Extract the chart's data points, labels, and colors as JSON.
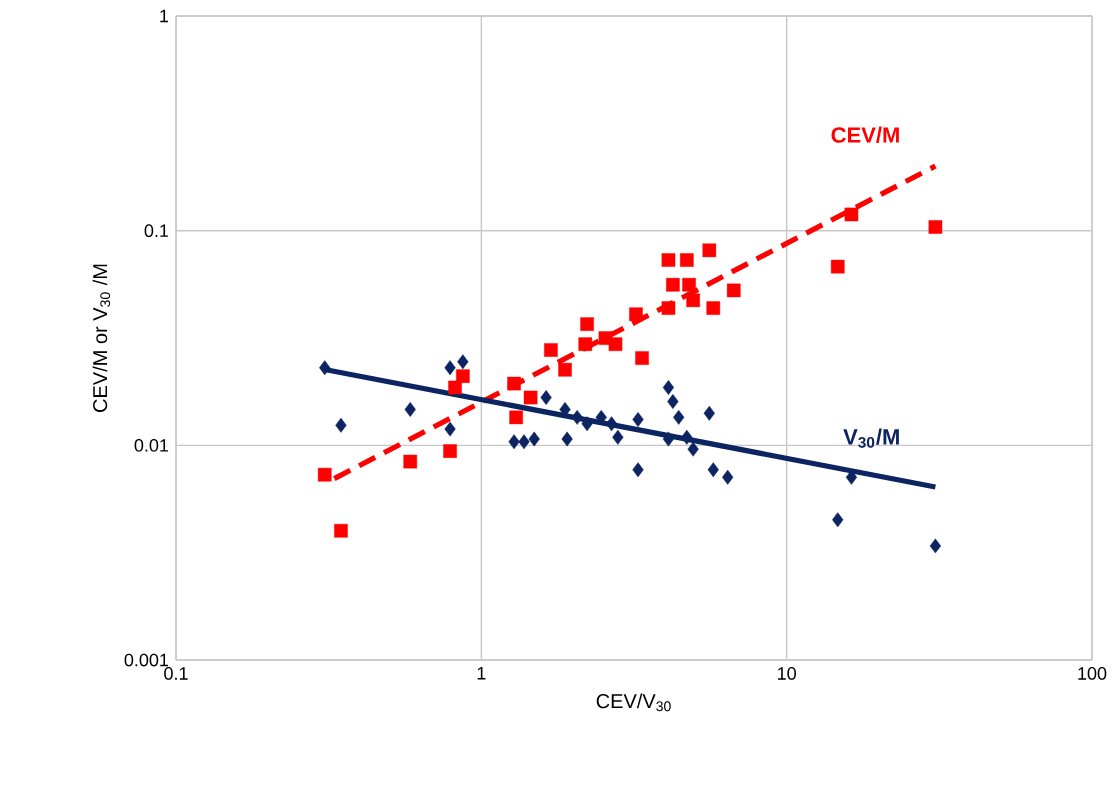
{
  "chart_data": {
    "type": "scatter",
    "xlabel": "CEV/V$_{30}$",
    "ylabel": "CEV/M  or V$_{30}$ /M",
    "log": "xy",
    "grid": true,
    "xlim": [
      0.1,
      100
    ],
    "ylim": [
      0.001,
      1
    ],
    "xticks": [
      0.1,
      1,
      10,
      100
    ],
    "yticks": [
      0.001,
      0.01,
      0.1,
      1
    ],
    "series": [
      {
        "name": "CEV/M",
        "type": "scatter",
        "marker": "square",
        "color": "#ff0000",
        "x": [
          0.307,
          0.347,
          0.585,
          0.79,
          0.87,
          0.82,
          1.28,
          1.45,
          1.3,
          1.69,
          1.88,
          2.22,
          2.19,
          2.55,
          2.75,
          3.21,
          3.36,
          4.1,
          4.71,
          5.58,
          4.24,
          4.79,
          4.1,
          4.94,
          5.75,
          6.71,
          14.7,
          16.3,
          30.7
        ],
        "values": [
          0.0073,
          0.004,
          0.0084,
          0.0094,
          0.021,
          0.0186,
          0.0194,
          0.0167,
          0.0135,
          0.0278,
          0.0225,
          0.0367,
          0.0296,
          0.0316,
          0.0296,
          0.0408,
          0.0255,
          0.073,
          0.073,
          0.081,
          0.056,
          0.056,
          0.0436,
          0.0474,
          0.0436,
          0.0527,
          0.068,
          0.119,
          0.104
        ]
      },
      {
        "type": "line",
        "line_style": "dashed",
        "marker": "none",
        "color": "#ff0000",
        "x": [
          0.33,
          30.7
        ],
        "values": [
          0.007,
          0.2
        ]
      },
      {
        "name": "V$_{30}$/M",
        "type": "scatter",
        "marker": "diamond",
        "color": "#0c2461",
        "x": [
          0.307,
          0.347,
          0.585,
          0.79,
          0.79,
          0.87,
          1.28,
          1.38,
          1.49,
          1.63,
          1.88,
          2.06,
          2.22,
          2.47,
          2.67,
          3.26,
          2.8,
          1.91,
          3.26,
          4.1,
          4.24,
          4.43,
          4.1,
          4.71,
          4.94,
          5.58,
          5.75,
          6.41,
          14.7,
          16.3,
          30.7
        ],
        "values": [
          0.023,
          0.0124,
          0.0147,
          0.0119,
          0.023,
          0.0245,
          0.0104,
          0.0104,
          0.0107,
          0.0167,
          0.0147,
          0.0135,
          0.0126,
          0.0135,
          0.0126,
          0.0132,
          0.0109,
          0.0107,
          0.0077,
          0.0186,
          0.016,
          0.0135,
          0.0107,
          0.0109,
          0.0096,
          0.0141,
          0.0077,
          0.0071,
          0.0045,
          0.0071,
          0.0034
        ]
      },
      {
        "type": "line",
        "line_style": "solid",
        "marker": "none",
        "color": "#0c2461",
        "x": [
          0.31,
          30.7
        ],
        "values": [
          0.0225,
          0.0064
        ]
      }
    ]
  }
}
